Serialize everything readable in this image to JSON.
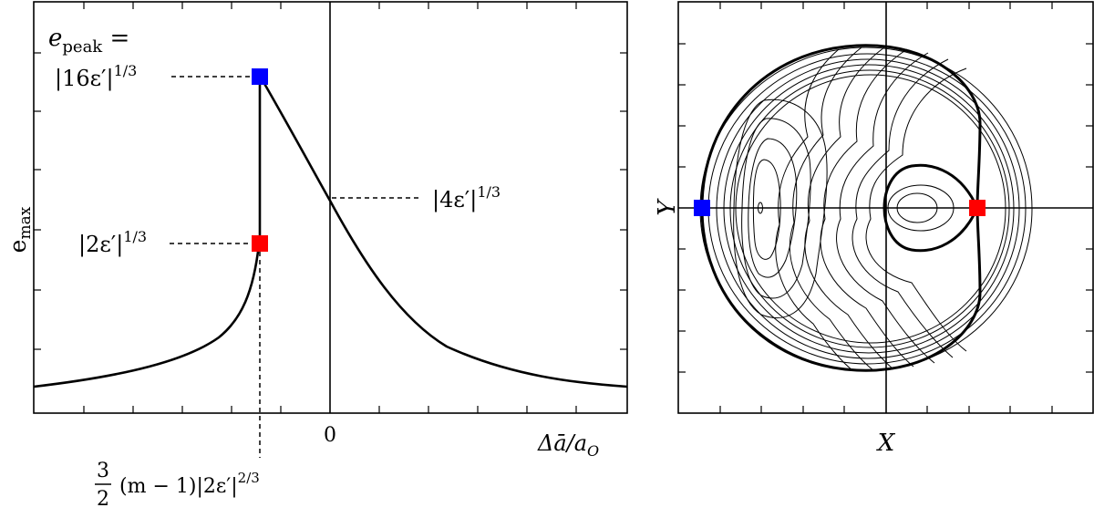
{
  "left_panel": {
    "ylabel_main": "e",
    "ylabel_sub": "max",
    "x_zero_label": "0",
    "xlabel_main": "Δā/a",
    "xlabel_sub": "O",
    "peak_label": {
      "line1_main": "e",
      "line1_sub": "peak",
      "line1_rest": " =",
      "line2_main": "|16ε′|",
      "line2_sup": "1/3"
    },
    "low_label": {
      "main": "|2ε′|",
      "sup": "1/3"
    },
    "cross_label": {
      "main": "|4ε′|",
      "sup": "1/3"
    },
    "bottom_label": {
      "frac_num": "3",
      "frac_den": "2",
      "main": "(m − 1)|2ε′|",
      "sup": "2/3"
    },
    "marker_colors": {
      "peak": "#0000ff",
      "low": "#ff0000"
    }
  },
  "right_panel": {
    "xlabel": "X",
    "ylabel": "Y",
    "marker_colors": {
      "left": "#0000ff",
      "right": "#ff0000"
    }
  }
}
